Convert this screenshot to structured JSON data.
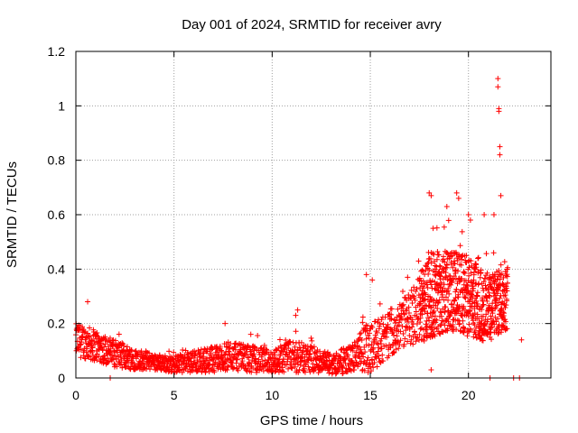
{
  "chart_data": {
    "type": "scatter",
    "title": "Day 001 of 2024, SRMTID for receiver avry",
    "xlabel": "GPS time / hours",
    "ylabel": "SRMTID / TECUs",
    "xlim": [
      0,
      24.2
    ],
    "ylim": [
      0,
      1.2
    ],
    "xticks": [
      0,
      5,
      10,
      15,
      20
    ],
    "xtick_labels": [
      "0",
      "5",
      "10",
      "15",
      "20"
    ],
    "yticks": [
      0,
      0.2,
      0.4,
      0.6,
      0.8,
      1,
      1.2
    ],
    "ytick_labels": [
      "0",
      "0.2",
      "0.4",
      "0.6",
      "0.8",
      "1",
      "1.2"
    ],
    "grid": true,
    "marker": "+",
    "colors": {
      "series": "#ff0000",
      "grid": "#a0a0a0",
      "axis": "#000000"
    },
    "envelope": {
      "description_hours": [
        0,
        1,
        2,
        3,
        4,
        5,
        6,
        7,
        8,
        9,
        10,
        11,
        12,
        13,
        14,
        15,
        16,
        17,
        18,
        19,
        20,
        21,
        22
      ],
      "typical_value": [
        0.14,
        0.12,
        0.09,
        0.07,
        0.06,
        0.05,
        0.06,
        0.07,
        0.08,
        0.07,
        0.06,
        0.08,
        0.07,
        0.05,
        0.07,
        0.12,
        0.16,
        0.22,
        0.3,
        0.32,
        0.3,
        0.25,
        0.3
      ],
      "spread": [
        0.06,
        0.06,
        0.05,
        0.04,
        0.03,
        0.03,
        0.04,
        0.05,
        0.05,
        0.05,
        0.04,
        0.06,
        0.05,
        0.04,
        0.05,
        0.1,
        0.08,
        0.1,
        0.16,
        0.15,
        0.15,
        0.12,
        0.12
      ]
    },
    "notable_points": [
      {
        "x": 18.0,
        "y": 0.68
      },
      {
        "x": 18.1,
        "y": 0.67
      },
      {
        "x": 18.2,
        "y": 0.55
      },
      {
        "x": 18.9,
        "y": 0.63
      },
      {
        "x": 19.4,
        "y": 0.68
      },
      {
        "x": 19.5,
        "y": 0.66
      },
      {
        "x": 20.0,
        "y": 0.6
      },
      {
        "x": 20.1,
        "y": 0.58
      },
      {
        "x": 21.5,
        "y": 1.1
      },
      {
        "x": 21.5,
        "y": 1.07
      },
      {
        "x": 21.55,
        "y": 0.99
      },
      {
        "x": 21.55,
        "y": 0.98
      },
      {
        "x": 21.6,
        "y": 0.85
      },
      {
        "x": 21.6,
        "y": 0.82
      },
      {
        "x": 21.65,
        "y": 0.67
      },
      {
        "x": 20.8,
        "y": 0.6
      },
      {
        "x": 21.3,
        "y": 0.6
      },
      {
        "x": 18.1,
        "y": 0.03
      },
      {
        "x": 11.3,
        "y": 0.25
      },
      {
        "x": 11.2,
        "y": 0.23
      },
      {
        "x": 0.6,
        "y": 0.28
      },
      {
        "x": 7.6,
        "y": 0.2
      },
      {
        "x": 14.8,
        "y": 0.38
      },
      {
        "x": 15.1,
        "y": 0.36
      },
      {
        "x": 16.9,
        "y": 0.37
      },
      {
        "x": 22.7,
        "y": 0.14
      },
      {
        "x": 1.75,
        "y": 0.0
      },
      {
        "x": 21.1,
        "y": 0.0
      },
      {
        "x": 22.3,
        "y": 0.0
      },
      {
        "x": 22.6,
        "y": 0.0
      }
    ]
  }
}
